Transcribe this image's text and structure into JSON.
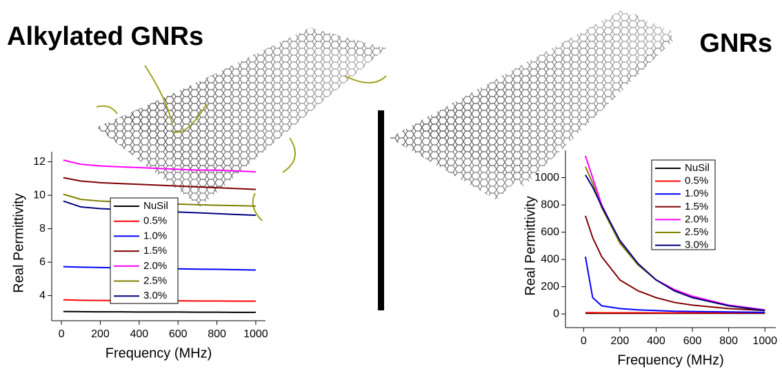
{
  "chart_data": [
    {
      "type": "line",
      "title": "Alkylated GNRs",
      "x_label": "Frequency (MHz)",
      "y_label": "Real Permittivity",
      "x": [
        10,
        100,
        200,
        300,
        400,
        500,
        600,
        700,
        800,
        900,
        1000
      ],
      "xlim": [
        -50,
        1050
      ],
      "xticks": [
        0,
        200,
        400,
        600,
        800,
        1000
      ],
      "ylim": [
        2.5,
        12.6
      ],
      "yticks": [
        4,
        6,
        8,
        10,
        12
      ],
      "series": [
        {
          "name": "NuSil",
          "color": "#000000",
          "values": [
            3.05,
            3.04,
            3.03,
            3.03,
            3.02,
            3.02,
            3.02,
            3.01,
            3.01,
            3.0,
            3.0
          ]
        },
        {
          "name": "0.5%",
          "color": "#ff0000",
          "values": [
            3.75,
            3.72,
            3.71,
            3.7,
            3.7,
            3.69,
            3.69,
            3.68,
            3.68,
            3.67,
            3.67
          ]
        },
        {
          "name": "1.0%",
          "color": "#0000ff",
          "values": [
            5.73,
            5.7,
            5.68,
            5.66,
            5.64,
            5.62,
            5.6,
            5.58,
            5.57,
            5.55,
            5.53
          ]
        },
        {
          "name": "1.5%",
          "color": "#800000",
          "values": [
            11.05,
            10.85,
            10.75,
            10.7,
            10.65,
            10.6,
            10.55,
            10.5,
            10.45,
            10.4,
            10.35
          ]
        },
        {
          "name": "2.0%",
          "color": "#ff00ff",
          "values": [
            12.1,
            11.85,
            11.75,
            11.7,
            11.65,
            11.6,
            11.55,
            11.5,
            11.5,
            11.45,
            11.4
          ]
        },
        {
          "name": "2.5%",
          "color": "#808000",
          "values": [
            10.06,
            9.75,
            9.65,
            9.6,
            9.55,
            9.5,
            9.47,
            9.43,
            9.4,
            9.38,
            9.35
          ]
        },
        {
          "name": "3.0%",
          "color": "#000080",
          "values": [
            9.65,
            9.3,
            9.2,
            9.15,
            9.1,
            9.05,
            9.0,
            8.95,
            8.9,
            8.85,
            8.8
          ]
        }
      ]
    },
    {
      "type": "line",
      "title": "GNRs",
      "x_label": "Frequency (MHz)",
      "y_label": "Real Permittivity",
      "x": [
        10,
        50,
        100,
        200,
        300,
        400,
        500,
        600,
        800,
        1000
      ],
      "xlim": [
        -100,
        1060
      ],
      "xticks": [
        0,
        200,
        400,
        600,
        800,
        1000
      ],
      "ylim": [
        -100,
        1200
      ],
      "yticks": [
        0,
        200,
        400,
        600,
        800,
        1000
      ],
      "series": [
        {
          "name": "NuSil",
          "color": "#000000",
          "values": [
            5,
            5,
            5,
            5,
            5,
            5,
            5,
            5,
            5,
            5
          ]
        },
        {
          "name": "0.5%",
          "color": "#ff0000",
          "values": [
            10,
            10,
            9,
            9,
            9,
            8,
            8,
            8,
            8,
            8
          ]
        },
        {
          "name": "1.0%",
          "color": "#0000ff",
          "values": [
            420,
            120,
            60,
            40,
            30,
            25,
            20,
            18,
            15,
            12
          ]
        },
        {
          "name": "1.5%",
          "color": "#800000",
          "values": [
            720,
            560,
            420,
            250,
            170,
            120,
            85,
            65,
            40,
            25
          ]
        },
        {
          "name": "2.0%",
          "color": "#ff00ff",
          "values": [
            1160,
            1000,
            800,
            530,
            360,
            250,
            180,
            130,
            65,
            30
          ]
        },
        {
          "name": "2.5%",
          "color": "#808000",
          "values": [
            1080,
            960,
            780,
            520,
            360,
            250,
            170,
            120,
            60,
            25
          ]
        },
        {
          "name": "3.0%",
          "color": "#000080",
          "values": [
            1020,
            930,
            790,
            540,
            370,
            250,
            170,
            120,
            60,
            25
          ]
        }
      ]
    }
  ]
}
